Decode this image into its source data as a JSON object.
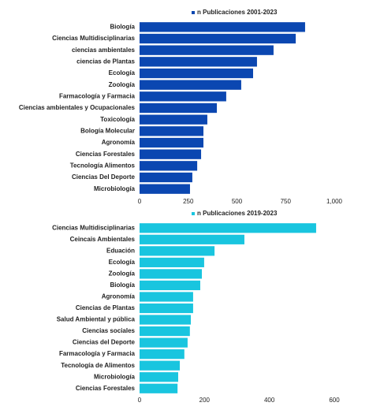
{
  "chart_data": [
    {
      "type": "hbar",
      "color": "#0b47b1",
      "legend": "top",
      "series": [
        {
          "name": "n Publicaciones 2001-2023",
          "color": "#0b47b1",
          "values": [
            850,
            802,
            688,
            603,
            583,
            522,
            445,
            397,
            348,
            328,
            328,
            316,
            296,
            271,
            259
          ]
        }
      ],
      "categories": [
        "Biología",
        "Ciencias Multidisciplinarias",
        "ciencias ambientales",
        "ciencias de Plantas",
        "Ecología",
        "Zoología",
        "Farmacología y Farmacia",
        "Ciencias ambientales y Ocupacionales",
        "Toxicología",
        "Bología Molecular",
        "Agronomía",
        "Ciencias Forestales",
        "Tecnología Alimentos",
        "Ciencias Del Deporte",
        "Microbiología"
      ],
      "xlim": [
        0,
        1000
      ],
      "xticks": [
        0,
        250,
        500,
        750,
        {
          "value": 1000,
          "label": "1,000"
        }
      ],
      "grid": false
    },
    {
      "type": "hbar",
      "color": "#19c5df",
      "legend": "top",
      "series": [
        {
          "name": "n Publicaciones 2019-2023",
          "color": "#19c5df",
          "values": [
            544,
            323,
            231,
            199,
            192,
            187,
            165,
            165,
            158,
            155,
            148,
            138,
            124,
            119,
            117
          ]
        }
      ],
      "categories": [
        "Ciencias Multidisciplinarias",
        "Ceincais Ambientales",
        "Eduación",
        "Ecología",
        "Zoología",
        "Biología",
        "Agronomía",
        "Ciencias de Plantas",
        "Salud Ambiental y pública",
        "Ciencias sociales",
        "Ciencias del Deporte",
        "Farmacología y Farmacia",
        "Tecnología de Alimentos",
        "Microbiología",
        "Ciencias Forestales"
      ],
      "xlim": [
        0,
        600
      ],
      "xticks": [
        0,
        200,
        400,
        600
      ],
      "grid": false
    }
  ]
}
